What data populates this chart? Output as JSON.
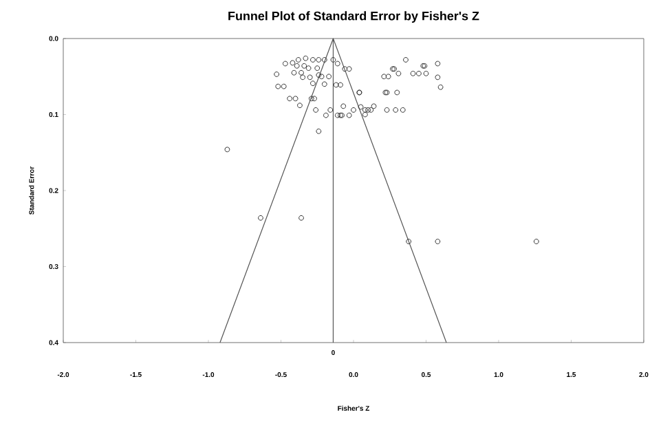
{
  "chart_data": {
    "type": "scatter",
    "title": "Funnel Plot of Standard Error by Fisher's Z",
    "xlabel": "Fisher's Z",
    "ylabel": "Standard Error",
    "xlim": [
      -2.0,
      2.0
    ],
    "ylim": [
      0.4,
      0.0
    ],
    "xticks": [
      {
        "value": -2,
        "label": "-2.0"
      },
      {
        "value": -1.5,
        "label": "-1.5"
      },
      {
        "value": -1,
        "label": "-1.0"
      },
      {
        "value": -0.5,
        "label": "-0.5"
      },
      {
        "value": 0,
        "label": "0.0"
      },
      {
        "value": 0.5,
        "label": "0.5"
      },
      {
        "value": 1,
        "label": "1.0"
      },
      {
        "value": 1.5,
        "label": "1.5"
      },
      {
        "value": 2,
        "label": "2.0"
      }
    ],
    "yticks": [
      {
        "value": 0,
        "label": "0.0"
      },
      {
        "value": 0.1,
        "label": "0.1"
      },
      {
        "value": 0.2,
        "label": "0.2"
      },
      {
        "value": 0.3,
        "label": "0.3"
      },
      {
        "value": 0.4,
        "label": "0.4"
      }
    ],
    "grid": false,
    "ref_lines": [
      {
        "axis": "x",
        "value": -0.14,
        "label": "0",
        "color": "#555555"
      }
    ],
    "series": [
      {
        "type": "line",
        "marker": "none",
        "color": "#555555",
        "x": [
          -0.92,
          -0.14,
          0.64
        ],
        "values": [
          0.4,
          0.0,
          0.4
        ]
      },
      {
        "marker": "circle",
        "color": "#333333",
        "x": [
          0.36,
          0.58,
          0.48,
          0.49,
          0.58,
          0.6,
          0.5,
          0.45,
          0.41,
          0.31,
          0.28,
          0.27,
          0.24,
          0.21,
          0.23,
          0.22,
          0.3,
          0.23,
          0.29,
          0.34,
          0.14,
          0.12,
          0.1,
          0.08,
          0.04,
          0.05,
          0.08,
          0.04,
          0.0,
          -0.03,
          -0.08,
          -0.09,
          -0.11,
          -0.07,
          -0.09,
          -0.12,
          -0.03,
          -0.06,
          -0.11,
          -0.14,
          -0.16,
          -0.19,
          -0.2,
          -0.17,
          -0.24,
          -0.26,
          -0.27,
          -0.29,
          -0.28,
          -0.37,
          -0.4,
          -0.44,
          -0.48,
          -0.52,
          -0.53,
          -0.47,
          -0.42,
          -0.38,
          -0.33,
          -0.28,
          -0.24,
          -0.2,
          -0.41,
          -0.36,
          -0.31,
          -0.25,
          -0.35,
          -0.3,
          -0.24,
          -0.39,
          -0.34,
          -0.22,
          -0.87,
          -0.64,
          -0.36,
          0.38,
          0.58,
          1.26
        ],
        "values": [
          0.028,
          0.033,
          0.036,
          0.036,
          0.051,
          0.064,
          0.046,
          0.046,
          0.046,
          0.046,
          0.04,
          0.04,
          0.05,
          0.05,
          0.071,
          0.071,
          0.071,
          0.094,
          0.094,
          0.094,
          0.089,
          0.094,
          0.094,
          0.094,
          0.071,
          0.09,
          0.1,
          0.071,
          0.094,
          0.101,
          0.101,
          0.101,
          0.101,
          0.089,
          0.061,
          0.061,
          0.04,
          0.04,
          0.033,
          0.028,
          0.094,
          0.101,
          0.06,
          0.05,
          0.122,
          0.094,
          0.079,
          0.079,
          0.059,
          0.088,
          0.079,
          0.079,
          0.063,
          0.063,
          0.047,
          0.033,
          0.032,
          0.028,
          0.026,
          0.028,
          0.028,
          0.028,
          0.045,
          0.045,
          0.039,
          0.039,
          0.051,
          0.051,
          0.048,
          0.036,
          0.036,
          0.05,
          0.146,
          0.236,
          0.236,
          0.267,
          0.267,
          0.267
        ]
      }
    ]
  }
}
